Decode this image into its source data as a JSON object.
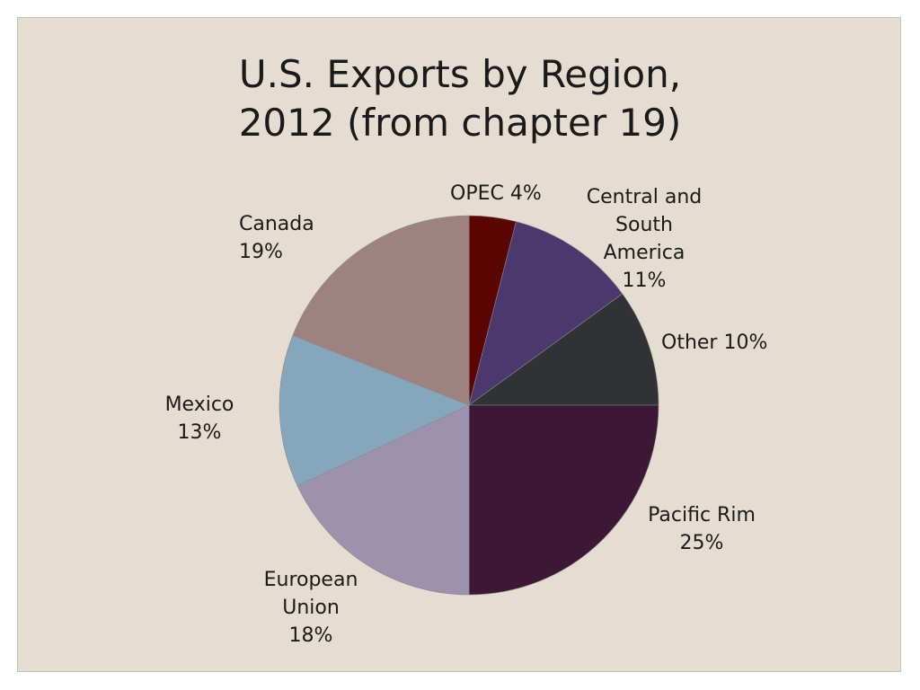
{
  "chart_data": {
    "type": "pie",
    "title_lines": [
      "U.S. Exports by Region,",
      "2012 (from chapter 19)"
    ],
    "start_angle_deg": 0,
    "direction": "clockwise",
    "legend": "none",
    "slices": [
      {
        "label": "OPEC",
        "value": 4,
        "display_lines": [
          "OPEC 4%"
        ],
        "color": "#5c0603"
      },
      {
        "label": "Central and South America",
        "value": 11,
        "display_lines": [
          "Central and",
          "South",
          "America",
          "11%"
        ],
        "color": "#4b386c"
      },
      {
        "label": "Other",
        "value": 10,
        "display_lines": [
          "Other 10%"
        ],
        "color": "#313236"
      },
      {
        "label": "Pacific Rim",
        "value": 25,
        "display_lines": [
          "Pacific Rim",
          "25%"
        ],
        "color": "#3c1836"
      },
      {
        "label": "European Union",
        "value": 18,
        "display_lines": [
          "European",
          "Union",
          "18%"
        ],
        "color": "#9d92ae"
      },
      {
        "label": "Mexico",
        "value": 13,
        "display_lines": [
          "Mexico",
          "13%"
        ],
        "color": "#86a6bc"
      },
      {
        "label": "Canada",
        "value": 19,
        "display_lines": [
          "Canada",
          "19%"
        ],
        "color": "#9d8280"
      }
    ]
  }
}
